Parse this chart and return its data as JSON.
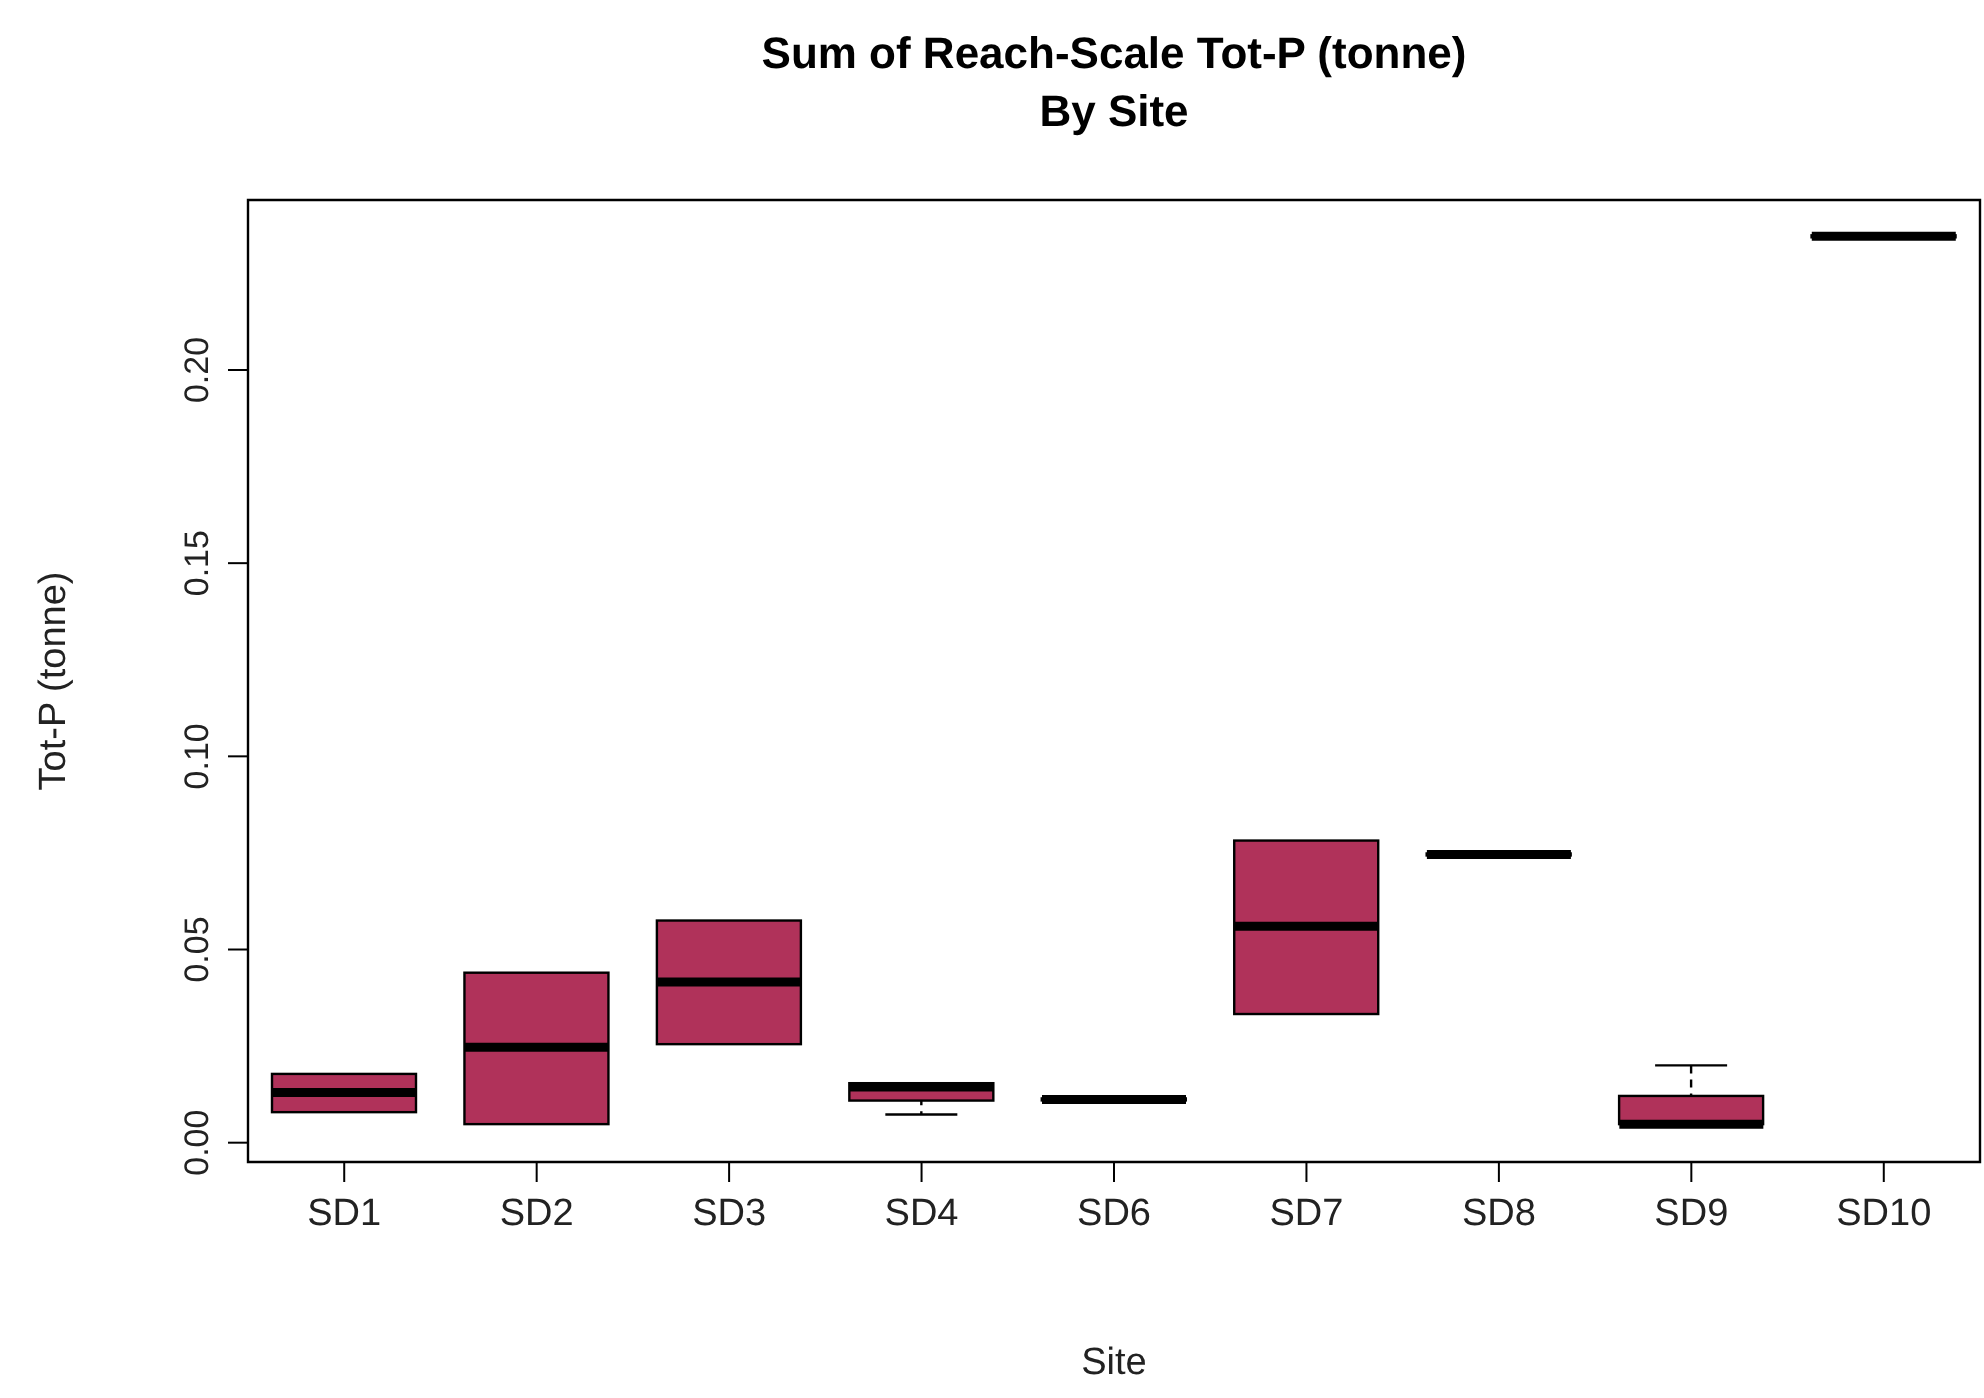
{
  "chart_data": {
    "type": "box",
    "title": "Sum of Reach-Scale Tot-P (tonne)\nBy Site",
    "xlabel": "Site",
    "ylabel": "Tot-P (tonne)",
    "categories": [
      "SD1",
      "SD2",
      "SD3",
      "SD4",
      "SD6",
      "SD7",
      "SD8",
      "SD9",
      "SD10"
    ],
    "color": "#b0325a",
    "boxes": [
      {
        "low": 0.0079,
        "q1": 0.0079,
        "median": 0.013,
        "q3": 0.0178,
        "high": 0.0178
      },
      {
        "low": 0.0048,
        "q1": 0.0048,
        "median": 0.0247,
        "q3": 0.044,
        "high": 0.044
      },
      {
        "low": 0.0255,
        "q1": 0.0255,
        "median": 0.0416,
        "q3": 0.0575,
        "high": 0.0575
      },
      {
        "low": 0.0073,
        "q1": 0.0109,
        "median": 0.0144,
        "q3": 0.0154,
        "high": 0.0154
      },
      {
        "low": 0.0112,
        "q1": 0.0112,
        "median": 0.0112,
        "q3": 0.0112,
        "high": 0.0112
      },
      {
        "low": 0.0333,
        "q1": 0.0333,
        "median": 0.056,
        "q3": 0.0782,
        "high": 0.0782
      },
      {
        "low": 0.0746,
        "q1": 0.0746,
        "median": 0.0746,
        "q3": 0.0746,
        "high": 0.0746
      },
      {
        "low": 0.0048,
        "q1": 0.0048,
        "median": 0.0048,
        "q3": 0.0121,
        "high": 0.02
      },
      {
        "low": 0.2346,
        "q1": 0.2346,
        "median": 0.2346,
        "q3": 0.2346,
        "high": 0.2346
      }
    ],
    "ylim": [
      -0.005,
      0.244
    ],
    "yticks": [
      {
        "value": 0,
        "label": "0.00"
      },
      {
        "value": 0.05,
        "label": "0.05"
      },
      {
        "value": 0.1,
        "label": "0.10"
      },
      {
        "value": 0.15,
        "label": "0.15"
      },
      {
        "value": 0.2,
        "label": "0.20"
      }
    ],
    "grid": false
  }
}
